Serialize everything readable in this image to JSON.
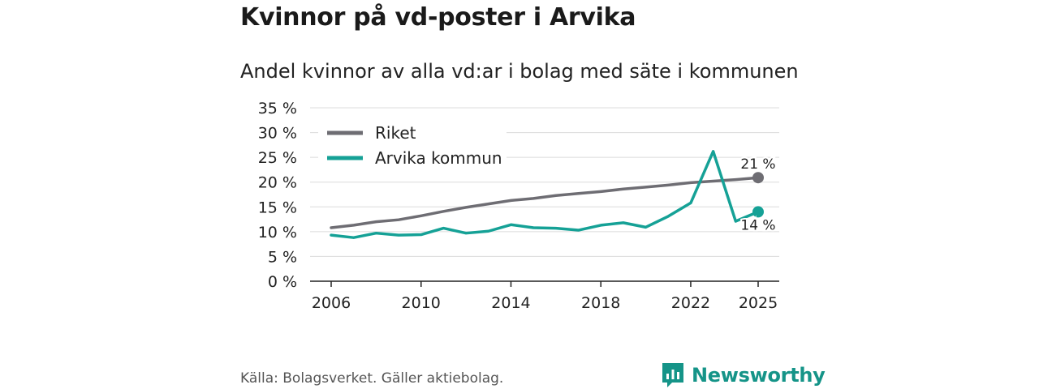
{
  "header": {
    "title": "Kvinnor på vd-poster i Arvika",
    "subtitle": "Andel kvinnor av alla vd:ar i bolag med säte i kommunen"
  },
  "footer": {
    "source": "Källa: Bolagsverket. Gäller aktiebolag.",
    "brand": "Newsworthy"
  },
  "chart_data": {
    "type": "line",
    "title": "Kvinnor på vd-poster i Arvika",
    "subtitle": "Andel kvinnor av alla vd:ar i bolag med säte i kommunen",
    "xlabel": "",
    "ylabel": "",
    "ylim": [
      0,
      35
    ],
    "xlim": [
      2006,
      2025
    ],
    "y_ticks": [
      0,
      5,
      10,
      15,
      20,
      25,
      30,
      35
    ],
    "y_tick_labels": [
      "0 %",
      "5 %",
      "10 %",
      "15 %",
      "20 %",
      "25 %",
      "30 %",
      "35 %"
    ],
    "x_ticks": [
      2006,
      2010,
      2014,
      2018,
      2022,
      2025
    ],
    "x_tick_labels": [
      "2006",
      "2010",
      "2014",
      "2018",
      "2022",
      "2025"
    ],
    "grid": true,
    "legend_position": "top-left",
    "x": [
      2006,
      2007,
      2008,
      2009,
      2010,
      2011,
      2012,
      2013,
      2014,
      2015,
      2016,
      2017,
      2018,
      2019,
      2020,
      2021,
      2022,
      2023,
      2024,
      2025
    ],
    "series": [
      {
        "name": "Riket",
        "color": "#6e6d73",
        "values": [
          10.8,
          11.3,
          12.0,
          12.4,
          13.2,
          14.1,
          14.9,
          15.6,
          16.3,
          16.7,
          17.3,
          17.7,
          18.1,
          18.6,
          19.0,
          19.4,
          19.9,
          20.2,
          20.5,
          20.9
        ],
        "end_label": "21 %"
      },
      {
        "name": "Arvika kommun",
        "color": "#15a196",
        "values": [
          9.3,
          8.8,
          9.7,
          9.3,
          9.4,
          10.7,
          9.7,
          10.1,
          11.4,
          10.8,
          10.7,
          10.3,
          11.3,
          11.8,
          10.9,
          13.1,
          15.8,
          26.2,
          12.1,
          14.0
        ],
        "end_label": "14 %"
      }
    ]
  }
}
